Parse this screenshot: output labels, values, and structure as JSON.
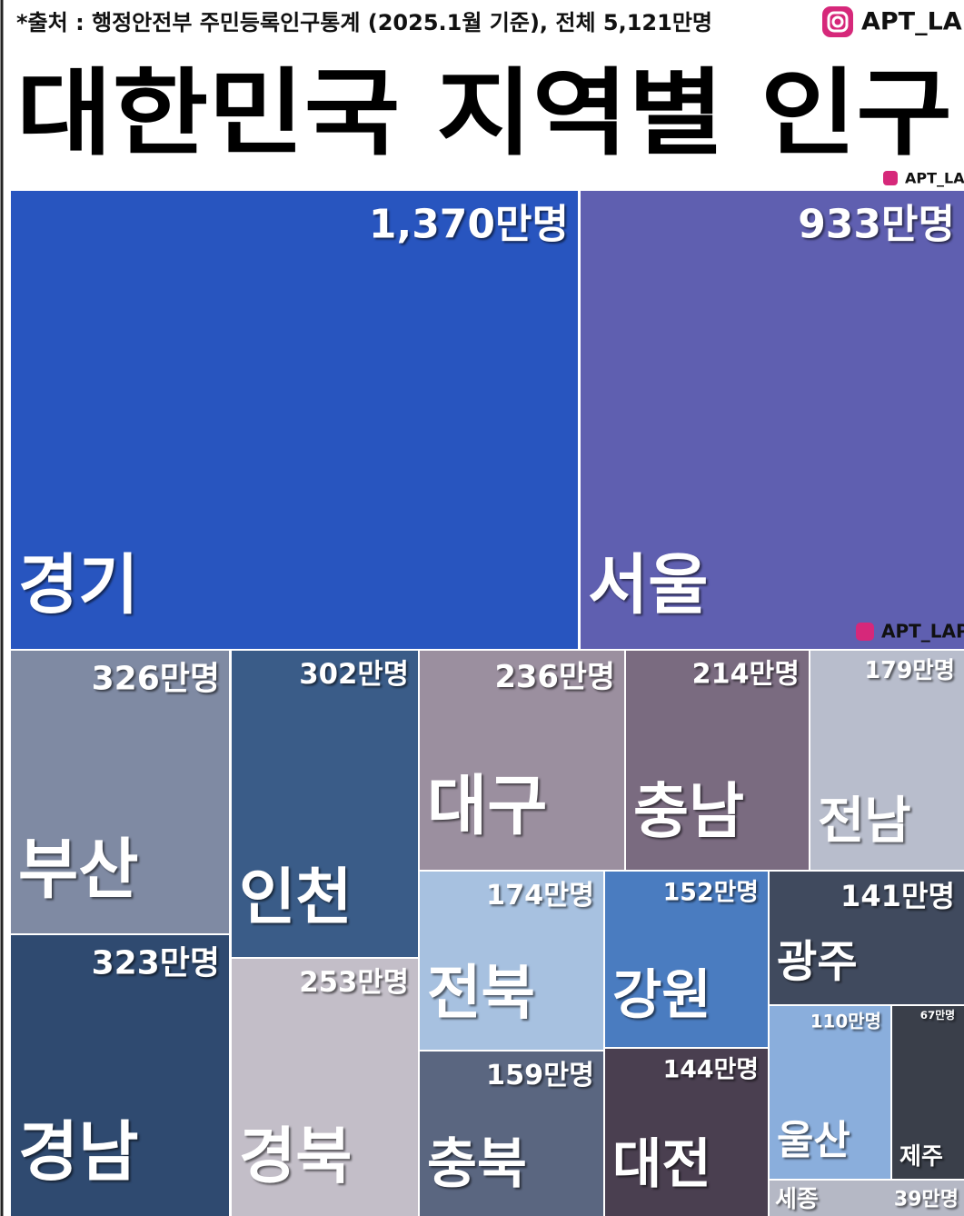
{
  "chart_data": {
    "type": "treemap",
    "source": "*출처 : 행정안전부 주민등록인구통계 (2025.1월 기준), 전체 5,121만명",
    "title": "대한민국 지역별 인구",
    "watermark": "APT_LAP",
    "categories": [
      "경기",
      "서울",
      "부산",
      "경남",
      "인천",
      "경북",
      "대구",
      "충남",
      "전남",
      "전북",
      "강원",
      "광주",
      "충북",
      "대전",
      "울산",
      "제주",
      "세종"
    ],
    "values": [
      1370,
      933,
      326,
      323,
      302,
      253,
      236,
      214,
      179,
      174,
      152,
      141,
      159,
      144,
      110,
      67,
      39
    ],
    "value_labels": [
      "1,370만명",
      "933만명",
      "326만명",
      "323만명",
      "302만명",
      "253만명",
      "236만명",
      "214만명",
      "179만명",
      "174만명",
      "152만명",
      "141만명",
      "159만명",
      "144만명",
      "110만명",
      "67만명",
      "39만명"
    ],
    "colors": [
      "#2855bf",
      "#5f5fb0",
      "#7f8aa3",
      "#2f4a70",
      "#3a5c88",
      "#c3bec8",
      "#9b8f9f",
      "#7a6b80",
      "#b8bdcc",
      "#a7c1e0",
      "#4a7cc0",
      "#404a5e",
      "#5a6680",
      "#4a3f50",
      "#8aaedc",
      "#3a3f4a",
      "#b5b8c5"
    ]
  }
}
